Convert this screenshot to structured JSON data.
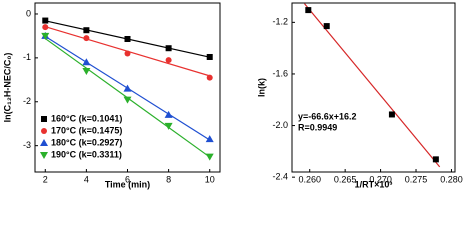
{
  "chart_data": [
    {
      "type": "scatter",
      "x_label": "Time (min)",
      "y_label": "ln(C₁₂H-NEC/C₀)",
      "x": [
        2,
        4,
        6,
        8,
        10
      ],
      "series": [
        {
          "name": "160°C (k=0.1041)",
          "color": "#000000",
          "marker": "square",
          "values": [
            -0.15,
            -0.37,
            -0.57,
            -0.78,
            -0.98
          ]
        },
        {
          "name": "170°C (k=0.1475)",
          "color": "#e8312f",
          "marker": "circle",
          "values": [
            -0.3,
            -0.55,
            -0.9,
            -1.05,
            -1.45
          ]
        },
        {
          "name": "180°C (k=0.2927)",
          "color": "#1f4fd1",
          "marker": "triangle-up",
          "values": [
            -0.5,
            -1.1,
            -1.7,
            -2.3,
            -2.85
          ]
        },
        {
          "name": "190°C (k=0.3311)",
          "color": "#2bb02b",
          "marker": "triangle-down",
          "values": [
            -0.5,
            -1.3,
            -1.95,
            -2.55,
            -3.25
          ]
        }
      ],
      "xlim": [
        1.5,
        10.5
      ],
      "ylim": [
        -3.6,
        0.25
      ],
      "xticks": [
        2,
        4,
        6,
        8,
        10
      ],
      "yticks": [
        0,
        -1,
        -2,
        -3
      ],
      "legend": "lower-left"
    },
    {
      "type": "scatter",
      "x_label": "1/RT×10³",
      "y_label": "ln(k)",
      "annotations": [
        "y=-66.6x+16.2",
        "R=0.9949"
      ],
      "x": [
        0.2598,
        0.2624,
        0.2716,
        0.2778
      ],
      "series": [
        {
          "color": "#000000",
          "line_color": "#d62728",
          "marker": "square",
          "values": [
            -1.105,
            -1.229,
            -1.914,
            -2.262
          ]
        }
      ],
      "xlim": [
        0.2575,
        0.2805
      ],
      "ylim": [
        -2.36,
        -1.05
      ],
      "xticks": [
        {
          "value": 0.26,
          "label": "0.260"
        },
        0.265,
        {
          "value": 0.27,
          "label": "0.270"
        },
        0.275,
        {
          "value": 0.28,
          "label": "0.280"
        }
      ],
      "yticks": [
        -1.2,
        -1.6,
        {
          "value": -2,
          "label": "-2.0"
        },
        -2.4
      ]
    }
  ]
}
